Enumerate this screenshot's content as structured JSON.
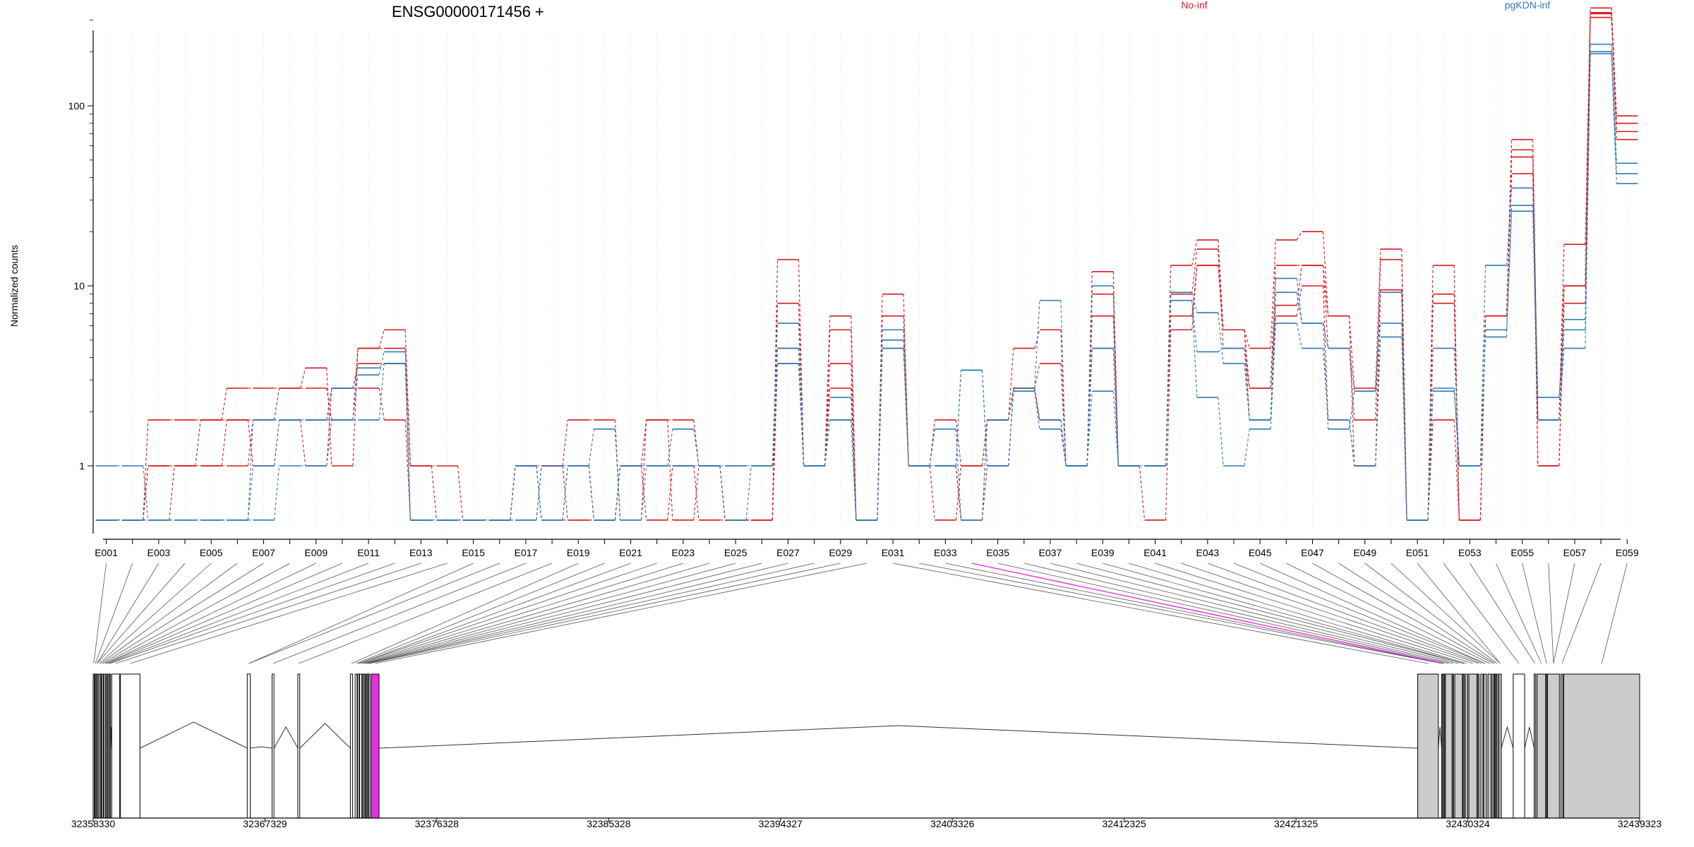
{
  "chart_data": {
    "type": "line",
    "title": "ENSG00000171456 +",
    "ylabel": "Normalized counts",
    "y_scale": "log",
    "y_ticks": [
      "1",
      "10",
      "100"
    ],
    "y_tick_values": [
      1,
      10,
      100
    ],
    "ylim": [
      0.5,
      400
    ],
    "grid": "faint vertical",
    "legend": {
      "placement": "top",
      "entries": [
        {
          "name": "No-inf",
          "color": "#d7191c"
        },
        {
          "name": "pgKDN-inf",
          "color": "#2c7bb6"
        }
      ]
    },
    "exon_ids": [
      "E001",
      "E002",
      "E003",
      "E004",
      "E005",
      "E006",
      "E007",
      "E008",
      "E009",
      "E010",
      "E011",
      "E012",
      "E013",
      "E014",
      "E015",
      "E016",
      "E017",
      "E018",
      "E019",
      "E020",
      "E021",
      "E022",
      "E023",
      "E024",
      "E025",
      "E026",
      "E027",
      "E028",
      "E029",
      "E030",
      "E031",
      "E032",
      "E033",
      "E034",
      "E035",
      "E036",
      "E037",
      "E038",
      "E039",
      "E040",
      "E041",
      "E042",
      "E043",
      "E044",
      "E045",
      "E046",
      "E047",
      "E048",
      "E049",
      "E050",
      "E051",
      "E052",
      "E053",
      "E054",
      "E055",
      "E056",
      "E057",
      "E058",
      "E059"
    ],
    "exon_labels_shown": [
      "E001",
      "E003",
      "E005",
      "E007",
      "E009",
      "E011",
      "E013",
      "E015",
      "E017",
      "E019",
      "E021",
      "E023",
      "E025",
      "E027",
      "E029",
      "E031",
      "E033",
      "E035",
      "E037",
      "E039",
      "E041",
      "E043",
      "E045",
      "E047",
      "E049",
      "E051",
      "E053",
      "E055",
      "E057",
      "E059"
    ],
    "highlighted_exon": "E034",
    "series": [
      {
        "name": "No-inf",
        "group": "No-inf",
        "values": [
          0.5,
          0.5,
          1.8,
          1.8,
          1.8,
          2.7,
          2.7,
          2.7,
          3.5,
          1.0,
          4.5,
          5.7,
          1.0,
          1.0,
          0.5,
          0.5,
          0.5,
          1.0,
          1.8,
          1.8,
          0.5,
          1.8,
          1.8,
          1.0,
          0.5,
          0.5,
          14,
          1.0,
          6.8,
          0.5,
          9.0,
          1.0,
          1.8,
          1.0,
          1.8,
          4.5,
          5.7,
          1.0,
          12,
          1.0,
          1.0,
          13,
          18,
          5.7,
          4.5,
          18,
          20,
          6.8,
          2.7,
          16,
          0.5,
          13,
          0.5,
          6.8,
          65,
          1.8,
          17,
          350,
          88
        ]
      },
      {
        "name": "No-inf",
        "group": "No-inf",
        "values": [
          0.5,
          0.5,
          1.0,
          1.0,
          1.8,
          1.8,
          1.8,
          2.7,
          2.7,
          1.8,
          4.5,
          4.5,
          1.0,
          0.5,
          0.5,
          0.5,
          1.0,
          1.0,
          0.5,
          0.5,
          1.0,
          0.5,
          1.0,
          1.0,
          0.5,
          0.5,
          8,
          1.0,
          5.7,
          0.5,
          6.8,
          1.0,
          1.0,
          0.5,
          1.8,
          2.7,
          3.7,
          1.0,
          9,
          1.0,
          1.0,
          9,
          16,
          4.5,
          2.7,
          13,
          13,
          4.5,
          1.8,
          14,
          0.5,
          9,
          0.5,
          6.8,
          57,
          1.0,
          10,
          330,
          80
        ]
      },
      {
        "name": "No-inf",
        "group": "No-inf",
        "values": [
          0.5,
          0.5,
          1.0,
          1.0,
          1.0,
          1.0,
          1.8,
          1.8,
          1.8,
          2.7,
          2.7,
          1.8,
          0.5,
          0.5,
          0.5,
          0.5,
          1.0,
          0.5,
          0.5,
          0.5,
          1.0,
          1.0,
          1.0,
          0.5,
          0.5,
          0.5,
          4.5,
          1.0,
          3.7,
          0.5,
          5.7,
          1.0,
          1.0,
          0.5,
          1.0,
          2.7,
          1.8,
          1.0,
          6.8,
          1.0,
          0.5,
          5.7,
          13,
          5.7,
          1.8,
          6.8,
          10,
          1.8,
          1.0,
          9.5,
          0.5,
          8,
          0.5,
          6.8,
          52,
          1.8,
          10,
          325,
          72
        ]
      },
      {
        "name": "No-inf",
        "group": "No-inf",
        "values": [
          0.5,
          0.5,
          0.5,
          1.0,
          1.0,
          1.8,
          1.0,
          1.8,
          1.0,
          2.7,
          3.7,
          3.7,
          0.5,
          0.5,
          0.5,
          0.5,
          1.0,
          1.0,
          1.0,
          0.5,
          1.0,
          1.8,
          0.5,
          1.0,
          0.5,
          0.5,
          3.7,
          1.0,
          2.7,
          0.5,
          4.5,
          1.0,
          0.5,
          1.0,
          1.8,
          2.7,
          1.8,
          1.0,
          4.5,
          1.0,
          1.0,
          6.8,
          13,
          5.7,
          2.7,
          7.8,
          13,
          6.8,
          1.0,
          9.5,
          0.5,
          1.8,
          0.5,
          6.8,
          42,
          1.0,
          8,
          310,
          65
        ]
      },
      {
        "name": "pgKDN-inf",
        "group": "pgKDN-inf",
        "values": [
          1.0,
          1.0,
          0.5,
          0.5,
          0.5,
          0.5,
          1.0,
          1.8,
          1.8,
          1.8,
          1.8,
          3.7,
          0.5,
          0.5,
          0.5,
          0.5,
          1.0,
          0.5,
          1.0,
          0.5,
          1.0,
          1.0,
          1.0,
          1.0,
          0.5,
          1.0,
          6.2,
          1.0,
          2.4,
          0.5,
          5.7,
          1.0,
          1.0,
          3.4,
          1.0,
          2.7,
          8.3,
          1.0,
          10,
          1.0,
          1.0,
          8.3,
          4.3,
          4.5,
          1.8,
          11,
          6.2,
          4.5,
          2.6,
          9.2,
          0.5,
          2.7,
          1.0,
          13,
          35,
          2.4,
          6.5,
          220,
          48
        ]
      },
      {
        "name": "pgKDN-inf",
        "group": "pgKDN-inf",
        "values": [
          0.5,
          0.5,
          0.5,
          0.5,
          0.5,
          0.5,
          0.5,
          1.0,
          1.0,
          1.8,
          3.2,
          4.3,
          0.5,
          0.5,
          0.5,
          0.5,
          1.0,
          0.5,
          1.0,
          1.6,
          0.5,
          1.0,
          1.6,
          1.0,
          1.0,
          1.0,
          4.5,
          1.0,
          1.8,
          0.5,
          5.0,
          1.0,
          1.6,
          0.5,
          1.8,
          2.6,
          1.8,
          1.0,
          4.5,
          1.0,
          1.0,
          9.2,
          7.1,
          3.7,
          1.8,
          9.2,
          6.2,
          1.6,
          2.6,
          6.2,
          0.5,
          2.6,
          1.0,
          5.7,
          28,
          1.8,
          5.7,
          200,
          42
        ]
      },
      {
        "name": "pgKDN-inf",
        "group": "pgKDN-inf",
        "values": [
          0.5,
          0.5,
          0.5,
          0.5,
          0.5,
          0.5,
          1.8,
          1.8,
          1.8,
          2.7,
          3.5,
          3.7,
          0.5,
          0.5,
          0.5,
          0.5,
          0.5,
          1.0,
          1.0,
          0.5,
          1.0,
          1.0,
          1.0,
          1.0,
          1.0,
          1.0,
          3.7,
          1.0,
          1.8,
          0.5,
          4.5,
          1.0,
          1.0,
          3.4,
          1.0,
          2.6,
          1.6,
          1.0,
          2.6,
          1.0,
          1.0,
          8.3,
          2.4,
          1.0,
          1.6,
          6.2,
          4.5,
          1.8,
          1.0,
          5.2,
          0.5,
          4.5,
          1.0,
          5.2,
          26,
          1.8,
          4.5,
          195,
          37
        ]
      }
    ]
  },
  "genome_axis": {
    "tick_labels": [
      "32358330",
      "32367329",
      "32376328",
      "32385328",
      "32394327",
      "32403326",
      "32412325",
      "32421325",
      "32430324",
      "32439323"
    ],
    "tick_values": [
      32358330,
      32367329,
      32376328,
      32385328,
      32394327,
      32403326,
      32412325,
      32421325,
      32430324,
      32439323
    ],
    "range": [
      32358330,
      32439323
    ]
  },
  "colors": {
    "no_inf": "#d7191c",
    "pgkdn_inf": "#2c7bb6",
    "highlight": "#e62ee6",
    "exon_fill": "#cccccc"
  }
}
